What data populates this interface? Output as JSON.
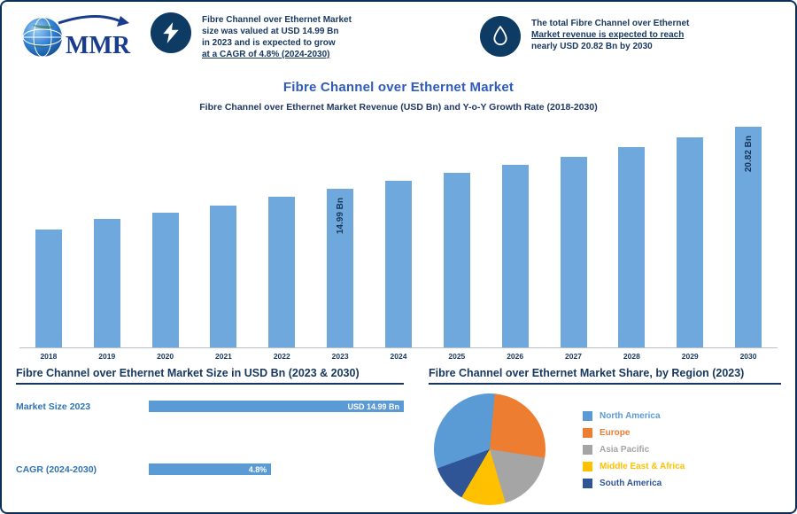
{
  "brand": {
    "name": "MMR"
  },
  "header": {
    "stat1": {
      "icon": "lightning-icon",
      "lines": [
        "Fibre Channel over Ethernet Market",
        "size was valued at USD 14.99 Bn",
        "in 2023 and is expected to grow",
        "at a CAGR of 4.8% (2024-2030)"
      ]
    },
    "stat2": {
      "icon": "growth-icon",
      "lines": [
        "The total Fibre Channel over Ethernet",
        "Market revenue is expected to reach",
        "nearly USD 20.82 Bn by 2030"
      ]
    }
  },
  "chart_data": [
    {
      "type": "bar",
      "title": "Fibre Channel over Ethernet Market",
      "subtitle": "Fibre Channel over Ethernet Market Revenue (USD Bn) and Y-o-Y Growth Rate (2018-2030)",
      "categories": [
        "2018",
        "2019",
        "2020",
        "2021",
        "2022",
        "2023",
        "2024",
        "2025",
        "2026",
        "2027",
        "2028",
        "2029",
        "2030"
      ],
      "values": [
        11.1,
        12.1,
        12.7,
        13.4,
        14.2,
        14.99,
        15.7,
        16.5,
        17.2,
        18.0,
        18.9,
        19.8,
        20.82
      ],
      "unit": "USD Bn",
      "ylim": [
        0,
        22
      ],
      "bar_labels": {
        "2023": "14.99 Bn",
        "2030": "20.82 Bn"
      },
      "bar_color": "#6FA8DC",
      "grid": false,
      "legend_position": "none"
    },
    {
      "type": "pie",
      "title": "Fibre Channel over Ethernet Market Share, by Region (2023)",
      "labels": [
        "North America",
        "Europe",
        "Asia Pacific",
        "Middle East & Africa",
        "South America"
      ],
      "values": [
        32,
        26,
        18,
        13,
        11
      ],
      "colors": [
        "#5B9BD5",
        "#ED7D31",
        "#A5A5A5",
        "#FFC000",
        "#2F5597"
      ],
      "legend_position": "right"
    },
    {
      "type": "bar-horizontal",
      "title": "Fibre Channel over Ethernet Market Size in USD Bn (2023 & 2030)",
      "rows": [
        {
          "label": "Market Size 2023",
          "value": "USD 14.99 Bn",
          "pct": 100
        },
        {
          "label": "CAGR (2024-2030)",
          "value": "4.8%",
          "pct": 48
        }
      ],
      "bar_color": "#5B9BD5"
    }
  ]
}
